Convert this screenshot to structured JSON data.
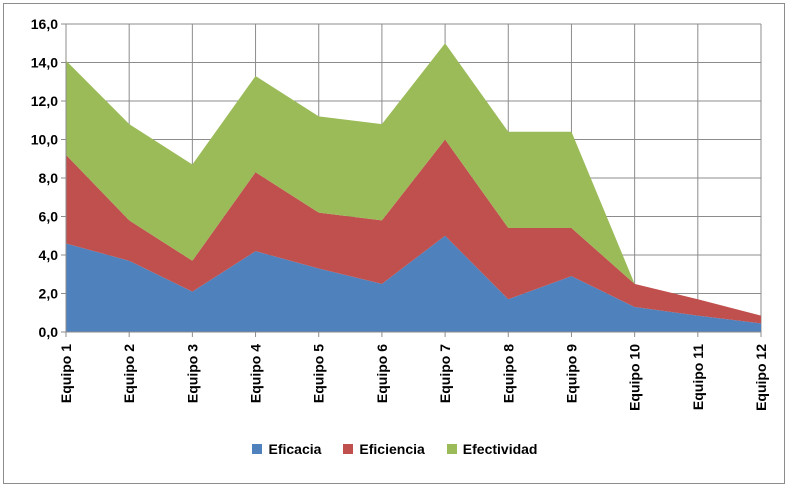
{
  "chart_data": {
    "type": "area",
    "stacked": true,
    "categories": [
      "Equipo 1",
      "Equipo 2",
      "Equipo 3",
      "Equipo 4",
      "Equipo 5",
      "Equipo 6",
      "Equipo 7",
      "Equipo 8",
      "Equipo 9",
      "Equipo 10",
      "Equipo 11",
      "Equipo 12"
    ],
    "series": [
      {
        "name": "Eficacia",
        "color": "#4f81bd",
        "values": [
          4.6,
          3.7,
          2.1,
          4.2,
          3.3,
          2.5,
          5.0,
          1.7,
          2.9,
          1.3,
          0.85,
          0.45
        ]
      },
      {
        "name": "Eficiencia",
        "color": "#c0504d",
        "values": [
          4.6,
          2.1,
          1.6,
          4.1,
          2.9,
          3.3,
          5.0,
          3.7,
          2.5,
          1.2,
          0.85,
          0.4
        ]
      },
      {
        "name": "Efectividad",
        "color": "#9bbb59",
        "values": [
          4.9,
          5.0,
          5.0,
          5.0,
          5.0,
          5.0,
          5.0,
          5.0,
          5.0,
          0.0,
          0.0,
          0.0
        ]
      }
    ],
    "yticks": [
      "0,0",
      "2,0",
      "4,0",
      "6,0",
      "8,0",
      "10,0",
      "12,0",
      "14,0",
      "16,0"
    ],
    "ylim": [
      0,
      16
    ],
    "grid": true,
    "legend_position": "bottom",
    "title": "",
    "xlabel": "",
    "ylabel": ""
  }
}
